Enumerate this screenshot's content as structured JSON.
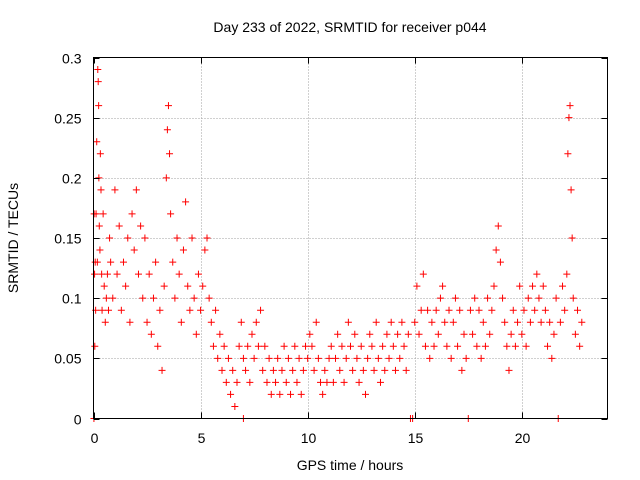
{
  "chart_data": {
    "type": "scatter",
    "title": "Day 233 of 2022, SRMTID for receiver p044",
    "xlabel": "GPS time / hours",
    "ylabel": "SRMTID / TECUs",
    "xlim": [
      0,
      24
    ],
    "ylim": [
      0,
      0.3
    ],
    "x_ticks": [
      0,
      5,
      10,
      15,
      20
    ],
    "y_ticks": [
      0,
      0.05,
      0.1,
      0.15,
      0.2,
      0.25,
      0.3
    ],
    "x_tick_labels": [
      "0",
      "5",
      "10",
      "15",
      "20"
    ],
    "y_tick_labels": [
      "0",
      "0.05",
      "0.1",
      "0.15",
      "0.2",
      "0.25",
      "0.3"
    ],
    "grid": true,
    "marker": "+",
    "marker_color": "#ff0000",
    "series": [
      {
        "name": "p044",
        "points": [
          [
            0.02,
            0.0
          ],
          [
            0.03,
            0.17
          ],
          [
            0.05,
            0.12
          ],
          [
            0.06,
            0.06
          ],
          [
            0.08,
            0.13
          ],
          [
            0.1,
            0.09
          ],
          [
            0.12,
            0.17
          ],
          [
            0.15,
            0.23
          ],
          [
            0.18,
            0.13
          ],
          [
            0.2,
            0.29
          ],
          [
            0.22,
            0.28
          ],
          [
            0.24,
            0.26
          ],
          [
            0.25,
            0.2
          ],
          [
            0.27,
            0.16
          ],
          [
            0.3,
            0.14
          ],
          [
            0.32,
            0.22
          ],
          [
            0.35,
            0.19
          ],
          [
            0.38,
            0.12
          ],
          [
            0.4,
            0.09
          ],
          [
            0.45,
            0.17
          ],
          [
            0.5,
            0.11
          ],
          [
            0.55,
            0.08
          ],
          [
            0.6,
            0.1
          ],
          [
            0.65,
            0.12
          ],
          [
            0.7,
            0.09
          ],
          [
            0.75,
            0.15
          ],
          [
            0.8,
            0.13
          ],
          [
            0.9,
            0.1
          ],
          [
            1.0,
            0.19
          ],
          [
            1.1,
            0.12
          ],
          [
            1.2,
            0.16
          ],
          [
            1.3,
            0.09
          ],
          [
            1.4,
            0.13
          ],
          [
            1.5,
            0.11
          ],
          [
            1.6,
            0.15
          ],
          [
            1.7,
            0.08
          ],
          [
            1.8,
            0.17
          ],
          [
            1.9,
            0.14
          ],
          [
            2.0,
            0.19
          ],
          [
            2.1,
            0.12
          ],
          [
            2.2,
            0.16
          ],
          [
            2.3,
            0.1
          ],
          [
            2.4,
            0.15
          ],
          [
            2.5,
            0.08
          ],
          [
            2.6,
            0.12
          ],
          [
            2.7,
            0.07
          ],
          [
            2.8,
            0.1
          ],
          [
            2.9,
            0.13
          ],
          [
            3.0,
            0.06
          ],
          [
            3.1,
            0.09
          ],
          [
            3.2,
            0.04
          ],
          [
            3.3,
            0.11
          ],
          [
            3.4,
            0.2
          ],
          [
            3.45,
            0.24
          ],
          [
            3.5,
            0.26
          ],
          [
            3.55,
            0.22
          ],
          [
            3.6,
            0.17
          ],
          [
            3.7,
            0.13
          ],
          [
            3.8,
            0.1
          ],
          [
            3.9,
            0.15
          ],
          [
            4.0,
            0.12
          ],
          [
            4.1,
            0.08
          ],
          [
            4.2,
            0.14
          ],
          [
            4.3,
            0.18
          ],
          [
            4.4,
            0.11
          ],
          [
            4.5,
            0.09
          ],
          [
            4.6,
            0.15
          ],
          [
            4.7,
            0.1
          ],
          [
            4.8,
            0.07
          ],
          [
            4.9,
            0.12
          ],
          [
            5.0,
            0.09
          ],
          [
            5.1,
            0.11
          ],
          [
            5.2,
            0.14
          ],
          [
            5.3,
            0.15
          ],
          [
            5.4,
            0.1
          ],
          [
            5.5,
            0.08
          ],
          [
            5.6,
            0.06
          ],
          [
            5.7,
            0.09
          ],
          [
            5.8,
            0.05
          ],
          [
            5.9,
            0.07
          ],
          [
            6.0,
            0.04
          ],
          [
            6.1,
            0.06
          ],
          [
            6.2,
            0.03
          ],
          [
            6.3,
            0.05
          ],
          [
            6.4,
            0.02
          ],
          [
            6.5,
            0.04
          ],
          [
            6.6,
            0.01
          ],
          [
            6.7,
            0.03
          ],
          [
            6.8,
            0.06
          ],
          [
            6.9,
            0.08
          ],
          [
            7.0,
            0.0
          ],
          [
            7.0,
            0.05
          ],
          [
            7.1,
            0.04
          ],
          [
            7.2,
            0.06
          ],
          [
            7.3,
            0.03
          ],
          [
            7.4,
            0.07
          ],
          [
            7.5,
            0.05
          ],
          [
            7.6,
            0.08
          ],
          [
            7.7,
            0.06
          ],
          [
            7.8,
            0.09
          ],
          [
            7.9,
            0.04
          ],
          [
            8.0,
            0.06
          ],
          [
            8.1,
            0.03
          ],
          [
            8.2,
            0.05
          ],
          [
            8.3,
            0.02
          ],
          [
            8.4,
            0.04
          ],
          [
            8.5,
            0.03
          ],
          [
            8.6,
            0.05
          ],
          [
            8.7,
            0.02
          ],
          [
            8.8,
            0.04
          ],
          [
            8.9,
            0.06
          ],
          [
            9.0,
            0.03
          ],
          [
            9.1,
            0.05
          ],
          [
            9.2,
            0.02
          ],
          [
            9.3,
            0.04
          ],
          [
            9.4,
            0.06
          ],
          [
            9.5,
            0.03
          ],
          [
            9.6,
            0.05
          ],
          [
            9.7,
            0.02
          ],
          [
            9.8,
            0.04
          ],
          [
            9.9,
            0.06
          ],
          [
            10.0,
            0.05
          ],
          [
            10.1,
            0.07
          ],
          [
            10.2,
            0.06
          ],
          [
            10.3,
            0.04
          ],
          [
            10.4,
            0.08
          ],
          [
            10.5,
            0.05
          ],
          [
            10.6,
            0.03
          ],
          [
            10.7,
            0.02
          ],
          [
            10.8,
            0.04
          ],
          [
            10.9,
            0.03
          ],
          [
            11.0,
            0.05
          ],
          [
            11.1,
            0.06
          ],
          [
            11.2,
            0.03
          ],
          [
            11.3,
            0.05
          ],
          [
            11.4,
            0.07
          ],
          [
            11.5,
            0.04
          ],
          [
            11.6,
            0.06
          ],
          [
            11.7,
            0.03
          ],
          [
            11.8,
            0.05
          ],
          [
            11.9,
            0.08
          ],
          [
            12.0,
            0.06
          ],
          [
            12.1,
            0.04
          ],
          [
            12.2,
            0.07
          ],
          [
            12.3,
            0.05
          ],
          [
            12.4,
            0.03
          ],
          [
            12.5,
            0.06
          ],
          [
            12.6,
            0.04
          ],
          [
            12.7,
            0.02
          ],
          [
            12.8,
            0.05
          ],
          [
            12.9,
            0.07
          ],
          [
            13.0,
            0.06
          ],
          [
            13.1,
            0.04
          ],
          [
            13.2,
            0.08
          ],
          [
            13.3,
            0.05
          ],
          [
            13.4,
            0.03
          ],
          [
            13.5,
            0.06
          ],
          [
            13.6,
            0.04
          ],
          [
            13.7,
            0.07
          ],
          [
            13.8,
            0.05
          ],
          [
            13.9,
            0.08
          ],
          [
            14.0,
            0.06
          ],
          [
            14.1,
            0.04
          ],
          [
            14.2,
            0.07
          ],
          [
            14.3,
            0.05
          ],
          [
            14.4,
            0.08
          ],
          [
            14.5,
            0.06
          ],
          [
            14.6,
            0.04
          ],
          [
            14.7,
            0.07
          ],
          [
            14.8,
            0.0
          ],
          [
            14.9,
            0.0
          ],
          [
            15.0,
            0.08
          ],
          [
            15.1,
            0.11
          ],
          [
            15.2,
            0.07
          ],
          [
            15.3,
            0.09
          ],
          [
            15.4,
            0.12
          ],
          [
            15.5,
            0.06
          ],
          [
            15.6,
            0.09
          ],
          [
            15.7,
            0.05
          ],
          [
            15.8,
            0.08
          ],
          [
            15.9,
            0.06
          ],
          [
            16.0,
            0.09
          ],
          [
            16.1,
            0.07
          ],
          [
            16.2,
            0.1
          ],
          [
            16.3,
            0.11
          ],
          [
            16.4,
            0.08
          ],
          [
            16.5,
            0.06
          ],
          [
            16.6,
            0.09
          ],
          [
            16.7,
            0.05
          ],
          [
            16.8,
            0.08
          ],
          [
            16.9,
            0.1
          ],
          [
            17.0,
            0.06
          ],
          [
            17.1,
            0.09
          ],
          [
            17.2,
            0.04
          ],
          [
            17.3,
            0.07
          ],
          [
            17.4,
            0.05
          ],
          [
            17.5,
            0.0
          ],
          [
            17.6,
            0.09
          ],
          [
            17.7,
            0.07
          ],
          [
            17.8,
            0.1
          ],
          [
            17.9,
            0.06
          ],
          [
            18.0,
            0.09
          ],
          [
            18.1,
            0.05
          ],
          [
            18.2,
            0.08
          ],
          [
            18.3,
            0.06
          ],
          [
            18.4,
            0.1
          ],
          [
            18.5,
            0.07
          ],
          [
            18.6,
            0.09
          ],
          [
            18.7,
            0.11
          ],
          [
            18.8,
            0.14
          ],
          [
            18.9,
            0.16
          ],
          [
            19.0,
            0.13
          ],
          [
            19.1,
            0.1
          ],
          [
            19.2,
            0.08
          ],
          [
            19.3,
            0.06
          ],
          [
            19.4,
            0.04
          ],
          [
            19.5,
            0.07
          ],
          [
            19.6,
            0.09
          ],
          [
            19.7,
            0.06
          ],
          [
            19.8,
            0.08
          ],
          [
            19.9,
            0.11
          ],
          [
            20.0,
            0.07
          ],
          [
            20.1,
            0.09
          ],
          [
            20.2,
            0.06
          ],
          [
            20.3,
            0.1
          ],
          [
            20.4,
            0.08
          ],
          [
            20.5,
            0.11
          ],
          [
            20.6,
            0.09
          ],
          [
            20.7,
            0.12
          ],
          [
            20.8,
            0.1
          ],
          [
            20.9,
            0.08
          ],
          [
            21.0,
            0.11
          ],
          [
            21.1,
            0.09
          ],
          [
            21.2,
            0.06
          ],
          [
            21.3,
            0.08
          ],
          [
            21.4,
            0.05
          ],
          [
            21.5,
            0.07
          ],
          [
            21.6,
            0.1
          ],
          [
            21.7,
            0.0
          ],
          [
            21.8,
            0.08
          ],
          [
            21.9,
            0.11
          ],
          [
            22.0,
            0.09
          ],
          [
            22.1,
            0.12
          ],
          [
            22.15,
            0.22
          ],
          [
            22.2,
            0.25
          ],
          [
            22.25,
            0.26
          ],
          [
            22.3,
            0.19
          ],
          [
            22.35,
            0.15
          ],
          [
            22.4,
            0.1
          ],
          [
            22.5,
            0.07
          ],
          [
            22.6,
            0.09
          ],
          [
            22.7,
            0.06
          ],
          [
            22.8,
            0.08
          ]
        ]
      }
    ]
  }
}
